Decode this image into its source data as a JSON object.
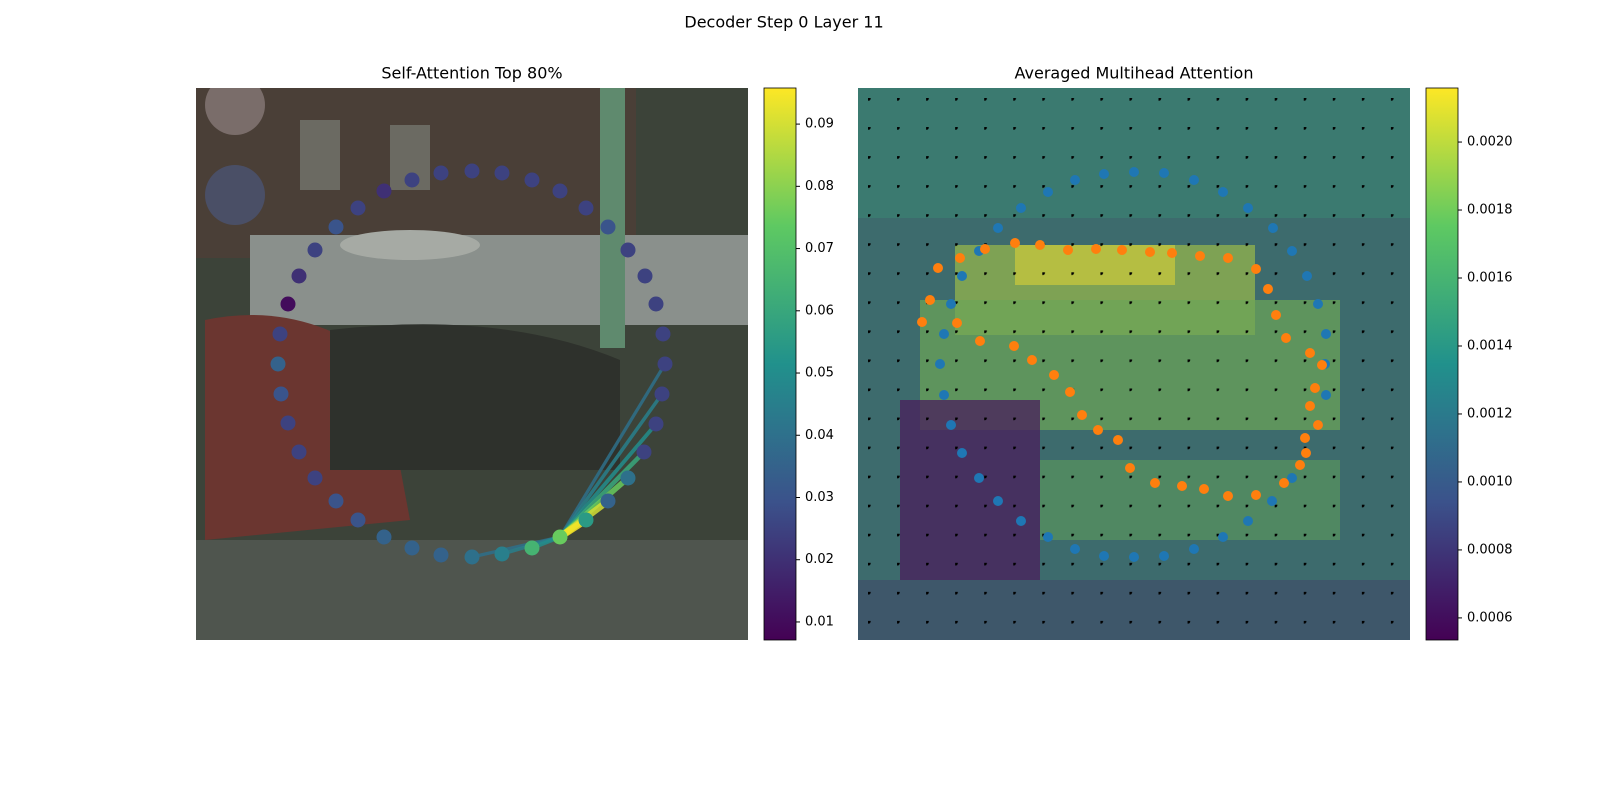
{
  "figure_title": "Decoder Step 0 Layer 11",
  "chart_data": [
    {
      "type": "scatter",
      "title": "Self-Attention Top 80%",
      "colormap": "viridis",
      "xlim": [
        0,
        552
      ],
      "ylim": [
        552,
        0
      ],
      "x": [
        92,
        84,
        82,
        85,
        92,
        103,
        119,
        140,
        162,
        188,
        216,
        245,
        276,
        306,
        336,
        364,
        390,
        412,
        432,
        448,
        460,
        466,
        469,
        467,
        460,
        449,
        432,
        412,
        390,
        364,
        336,
        306,
        276,
        245,
        216,
        188,
        162,
        140,
        119,
        103
      ],
      "y": [
        216,
        246,
        276,
        306,
        335,
        364,
        390,
        413,
        432,
        449,
        460,
        467,
        469,
        466,
        460,
        449,
        432,
        413,
        390,
        364,
        336,
        306,
        276,
        246,
        216,
        188,
        162,
        139,
        120,
        103,
        92,
        85,
        83,
        85,
        92,
        103,
        120,
        139,
        162,
        188
      ],
      "values": [
        0.01,
        0.025,
        0.035,
        0.03,
        0.025,
        0.025,
        0.025,
        0.03,
        0.03,
        0.035,
        0.035,
        0.035,
        0.04,
        0.045,
        0.065,
        0.075,
        0.055,
        0.035,
        0.04,
        0.025,
        0.025,
        0.025,
        0.025,
        0.025,
        0.025,
        0.025,
        0.025,
        0.03,
        0.025,
        0.025,
        0.025,
        0.025,
        0.025,
        0.025,
        0.025,
        0.02,
        0.025,
        0.03,
        0.025,
        0.02
      ],
      "links": {
        "source": 15,
        "targets": [
          12,
          13,
          14,
          22,
          21,
          20,
          19,
          18,
          17,
          16
        ],
        "values": [
          0.04,
          0.045,
          0.05,
          0.04,
          0.045,
          0.05,
          0.06,
          0.075,
          0.09,
          0.095
        ]
      },
      "clim": [
        0.0071,
        0.0958
      ],
      "cticks": [
        0.01,
        0.02,
        0.03,
        0.04,
        0.05,
        0.06,
        0.07,
        0.08,
        0.09
      ]
    },
    {
      "type": "scatter",
      "title": "Averaged Multihead Attention",
      "colormap": "viridis",
      "xlim": [
        0,
        552
      ],
      "ylim": [
        552,
        0
      ],
      "series": [
        {
          "color": "#1f77b4",
          "x": [
            86,
            82,
            86,
            93,
            104,
            121,
            140,
            163,
            190,
            217,
            246,
            276,
            306,
            336,
            365,
            390,
            414,
            434,
            448,
            460,
            468,
            467,
            468,
            460,
            449,
            434,
            415,
            390,
            365,
            336,
            306,
            276,
            246,
            217,
            190,
            163,
            140,
            121,
            104,
            93
          ],
          "y": [
            246,
            276,
            307,
            337,
            365,
            390,
            413,
            433,
            449,
            461,
            468,
            469,
            468,
            461,
            449,
            433,
            413,
            390,
            365,
            337,
            307,
            276,
            246,
            216,
            188,
            163,
            140,
            120,
            104,
            92,
            85,
            84,
            86,
            92,
            104,
            120,
            140,
            163,
            188,
            216
          ]
        },
        {
          "color": "#ff7f0e",
          "x": [
            64,
            72,
            80,
            102,
            127,
            157,
            182,
            210,
            238,
            264,
            292,
            314,
            342,
            370,
            398,
            410,
            418,
            428,
            452,
            464,
            457,
            452,
            460,
            447,
            448,
            442,
            426,
            398,
            370,
            346,
            324,
            297,
            272,
            260,
            240,
            224,
            212,
            196,
            174,
            156,
            122,
            99
          ],
          "y": [
            234,
            212,
            180,
            170,
            161,
            155,
            157,
            162,
            161,
            162,
            164,
            165,
            168,
            170,
            181,
            201,
            227,
            250,
            265,
            277,
            300,
            318,
            337,
            350,
            365,
            377,
            395,
            407,
            408,
            401,
            398,
            395,
            380,
            352,
            342,
            327,
            304,
            287,
            272,
            258,
            253,
            235
          ]
        }
      ],
      "clim": [
        0.000535,
        0.002159
      ],
      "cticks": [
        {
          "value": 0.0006,
          "label": "0.0006"
        },
        {
          "value": 0.0008,
          "label": "0.0008"
        },
        {
          "value": 0.001,
          "label": "0.0010"
        },
        {
          "value": 0.0012,
          "label": "0.0012"
        },
        {
          "value": 0.0014,
          "label": "0.0014"
        },
        {
          "value": 0.0016,
          "label": "0.0016"
        },
        {
          "value": 0.0018,
          "label": "0.0018"
        },
        {
          "value": 0.002,
          "label": "0.0020"
        }
      ]
    }
  ]
}
